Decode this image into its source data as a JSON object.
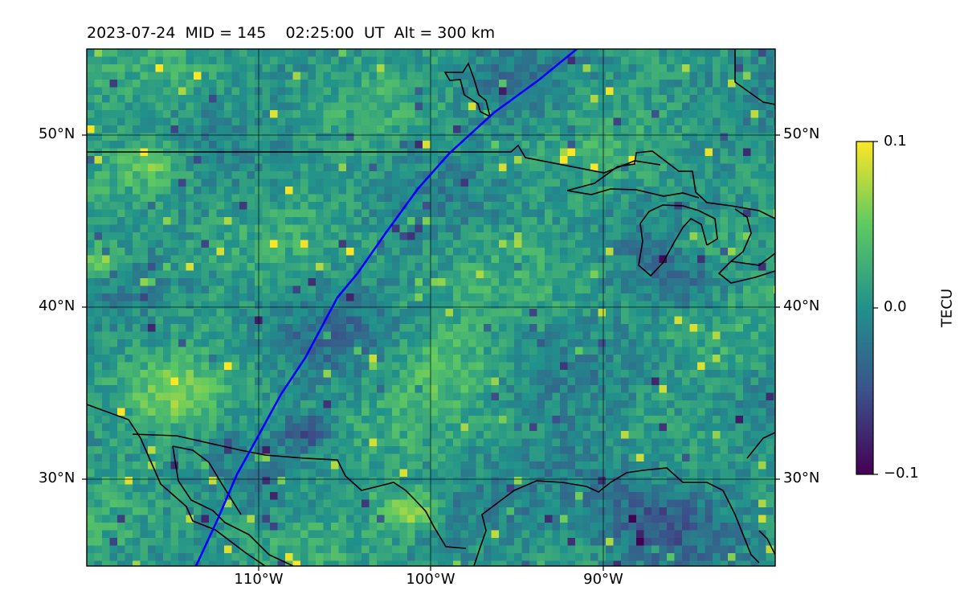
{
  "title": "2023-07-24  MID = 145    02:25:00  UT  Alt = 300 km",
  "map": {
    "lon_range": [
      -120,
      -80
    ],
    "lat_range": [
      25,
      55
    ],
    "grid": true,
    "overlay": "coastlines and country borders",
    "satellite_track_color": "#0000ff",
    "colormap": "viridis"
  },
  "axes": {
    "lat_ticks_left": [
      "50°N",
      "40°N",
      "30°N"
    ],
    "lat_ticks_right": [
      "50°N",
      "40°N",
      "30°N"
    ],
    "lon_ticks": [
      "110°W",
      "100°W",
      "90°W"
    ]
  },
  "colorbar": {
    "label": "TECU",
    "tick_labels": [
      "0.1",
      "0.0",
      "−0.1"
    ],
    "range": [
      -0.1,
      0.1
    ]
  }
}
